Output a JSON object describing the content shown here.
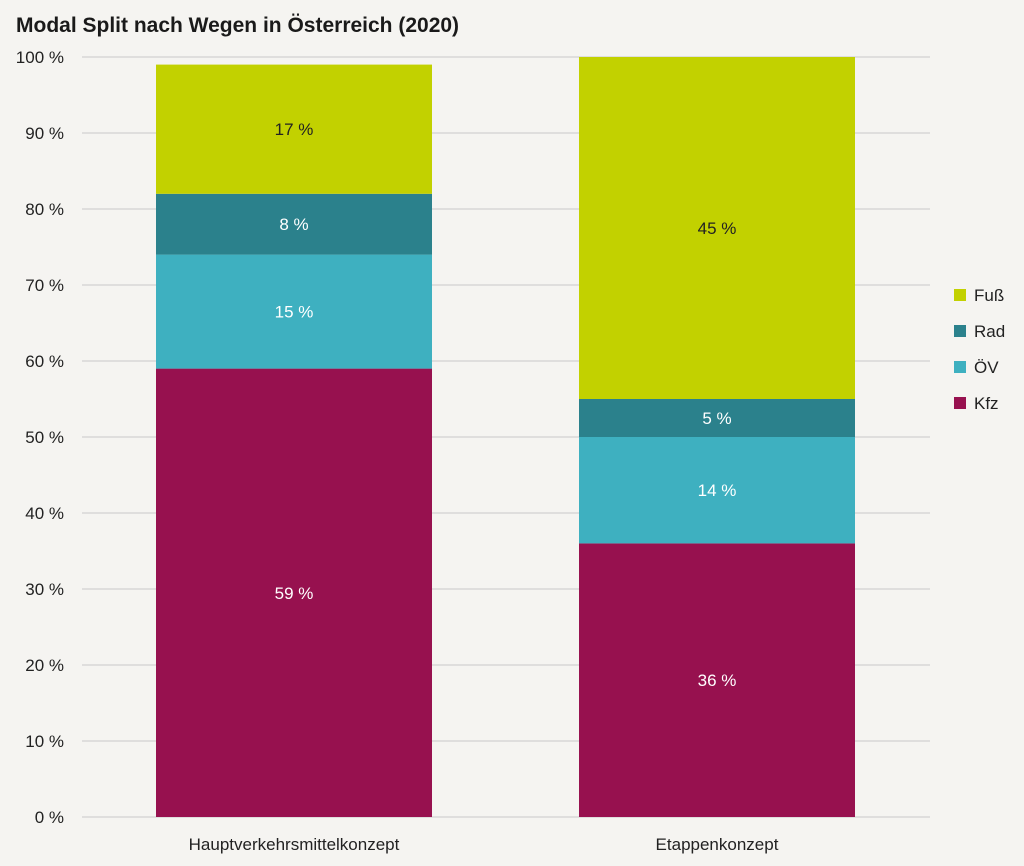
{
  "chart_data": {
    "type": "bar",
    "stacked": true,
    "title": "Modal Split nach Wegen in Österreich (2020)",
    "xlabel": "",
    "ylabel": "",
    "ylim": [
      0,
      100
    ],
    "y_ticks": [
      "0 %",
      "10 %",
      "20 %",
      "30 %",
      "40 %",
      "50 %",
      "60 %",
      "70 %",
      "80 %",
      "90 %",
      "100 %"
    ],
    "grid": true,
    "legend_position": "right",
    "categories": [
      "Hauptverkehrsmittelkonzept",
      "Etappenkonzept"
    ],
    "series": [
      {
        "name": "Kfz",
        "color": "#97114f",
        "label_color": "#ffffff",
        "values": [
          59,
          36
        ],
        "labels": [
          "59 %",
          "36 %"
        ]
      },
      {
        "name": "ÖV",
        "color": "#3eb0c0",
        "label_color": "#ffffff",
        "values": [
          15,
          14
        ],
        "labels": [
          "15 %",
          "14 %"
        ]
      },
      {
        "name": "Rad",
        "color": "#2b818c",
        "label_color": "#ffffff",
        "values": [
          8,
          5
        ],
        "labels": [
          "8 %",
          "5 %"
        ]
      },
      {
        "name": "Fuß",
        "color": "#c2d100",
        "label_color": "#222222",
        "values": [
          17,
          45
        ],
        "labels": [
          "17 %",
          "45 %"
        ]
      }
    ],
    "legend_order": [
      "Fuß",
      "Rad",
      "ÖV",
      "Kfz"
    ]
  }
}
